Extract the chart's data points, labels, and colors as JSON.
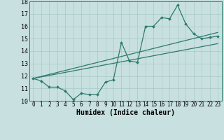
{
  "title": "",
  "xlabel": "Humidex (Indice chaleur)",
  "ylabel": "",
  "xlim": [
    -0.5,
    23.5
  ],
  "ylim": [
    10,
    18
  ],
  "xticks": [
    0,
    1,
    2,
    3,
    4,
    5,
    6,
    7,
    8,
    9,
    10,
    11,
    12,
    13,
    14,
    15,
    16,
    17,
    18,
    19,
    20,
    21,
    22,
    23
  ],
  "yticks": [
    10,
    11,
    12,
    13,
    14,
    15,
    16,
    17,
    18
  ],
  "bg_color": "#c8e0e0",
  "line_color": "#2d7a6e",
  "line1_x": [
    0,
    1,
    2,
    3,
    4,
    5,
    6,
    7,
    8,
    9,
    10,
    11,
    12,
    13,
    14,
    15,
    16,
    17,
    18,
    19,
    20,
    21,
    22,
    23
  ],
  "line1_y": [
    11.8,
    11.6,
    11.1,
    11.1,
    10.8,
    10.1,
    10.6,
    10.5,
    10.5,
    11.5,
    11.7,
    14.7,
    13.2,
    13.1,
    16.0,
    16.0,
    16.7,
    16.6,
    17.7,
    16.2,
    15.4,
    15.0,
    15.1,
    15.2
  ],
  "line2_x": [
    0,
    23
  ],
  "line2_y": [
    11.8,
    14.6
  ],
  "line3_x": [
    0,
    23
  ],
  "line3_y": [
    11.8,
    15.5
  ],
  "tick_fontsize": 5.5,
  "xlabel_fontsize": 7.0,
  "grid_color": "#a8c8c8"
}
